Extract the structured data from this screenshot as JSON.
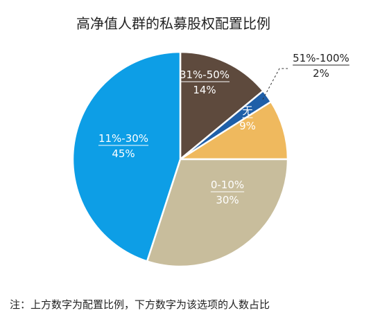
{
  "chart_data": {
    "type": "pie",
    "title": "高净值人群的私募股权配置比例",
    "slices": [
      {
        "category": "31%-50%",
        "value": 14,
        "value_label": "14%",
        "color": "#5e4a3d",
        "label_color": "#ffffff"
      },
      {
        "category": "51%-100%",
        "value": 2,
        "value_label": "2%",
        "color": "#1f5fa8",
        "label_color": "#222222"
      },
      {
        "category": "无",
        "value": 9,
        "value_label": "9%",
        "color": "#efb95e",
        "label_color": "#ffffff"
      },
      {
        "category": "0-10%",
        "value": 30,
        "value_label": "30%",
        "color": "#c8bd9c",
        "label_color": "#ffffff"
      },
      {
        "category": "11%-30%",
        "value": 45,
        "value_label": "45%",
        "color": "#0d9ee6",
        "label_color": "#ffffff"
      }
    ]
  },
  "footnote": "注：上方数字为配置比例，下方数字为该选项的人数占比"
}
